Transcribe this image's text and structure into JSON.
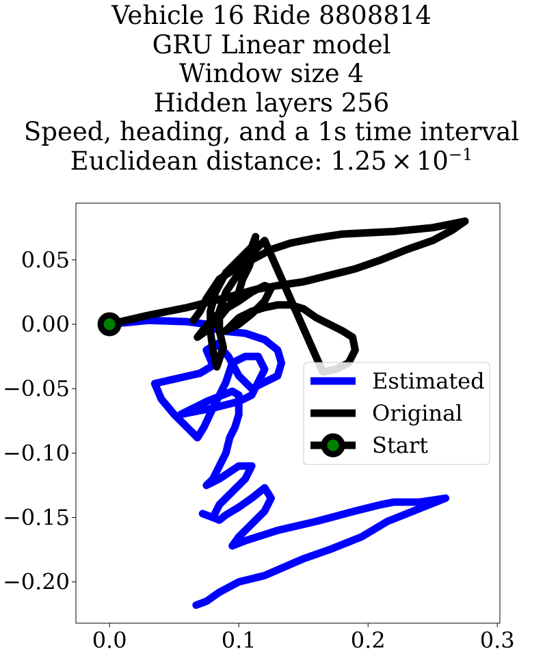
{
  "title_lines": [
    "Vehicle 16 Ride 8808814",
    "GRU Linear model",
    "Window size 4",
    "Hidden layers 256",
    "Speed, heading, and a 1s time interval"
  ],
  "distance": {
    "prefix": "Euclidean distance: ",
    "mantissa": "1.25",
    "times": "×",
    "base": "10",
    "exponent": "−1"
  },
  "chart_data": {
    "type": "line",
    "title": "Vehicle 16 Ride 8808814 / GRU Linear model / Window size 4 / Hidden layers 256 / Speed, heading, and a 1s time interval / Euclidean distance: 1.25×10^-1",
    "xlabel": "",
    "ylabel": "",
    "xlim": [
      -0.026,
      0.302
    ],
    "ylim": [
      -0.232,
      0.094
    ],
    "xticks": [
      0.0,
      0.1,
      0.2,
      0.3
    ],
    "xtick_labels": [
      "0.0",
      "0.1",
      "0.2",
      "0.3"
    ],
    "yticks": [
      0.05,
      0.0,
      -0.05,
      -0.1,
      -0.15,
      -0.2
    ],
    "ytick_labels": [
      "0.05",
      "0.00",
      "−0.05",
      "−0.10",
      "−0.15",
      "−0.20"
    ],
    "grid": false,
    "legend_position": "center-right",
    "series": [
      {
        "name": "Estimated",
        "color": "#0000ff",
        "points": [
          [
            0.0,
            0.0
          ],
          [
            0.03,
            0.003
          ],
          [
            0.06,
            0.002
          ],
          [
            0.075,
            0.0
          ],
          [
            0.085,
            -0.005
          ],
          [
            0.105,
            -0.007
          ],
          [
            0.12,
            -0.012
          ],
          [
            0.13,
            -0.02
          ],
          [
            0.133,
            -0.03
          ],
          [
            0.13,
            -0.04
          ],
          [
            0.11,
            -0.05
          ],
          [
            0.1,
            -0.04
          ],
          [
            0.092,
            -0.025
          ],
          [
            0.083,
            -0.015
          ],
          [
            0.075,
            -0.02
          ],
          [
            0.08,
            -0.032
          ],
          [
            0.07,
            -0.038
          ],
          [
            0.035,
            -0.046
          ],
          [
            0.04,
            -0.058
          ],
          [
            0.05,
            -0.07
          ],
          [
            0.06,
            -0.08
          ],
          [
            0.068,
            -0.088
          ],
          [
            0.073,
            -0.08
          ],
          [
            0.08,
            -0.065
          ],
          [
            0.09,
            -0.045
          ],
          [
            0.095,
            -0.03
          ],
          [
            0.105,
            -0.025
          ],
          [
            0.115,
            -0.025
          ],
          [
            0.12,
            -0.035
          ],
          [
            0.115,
            -0.045
          ],
          [
            0.11,
            -0.055
          ],
          [
            0.1,
            -0.06
          ],
          [
            0.08,
            -0.065
          ],
          [
            0.055,
            -0.07
          ],
          [
            0.075,
            -0.06
          ],
          [
            0.095,
            -0.052
          ],
          [
            0.1,
            -0.055
          ],
          [
            0.1,
            -0.07
          ],
          [
            0.097,
            -0.08
          ],
          [
            0.093,
            -0.088
          ],
          [
            0.09,
            -0.1
          ],
          [
            0.085,
            -0.11
          ],
          [
            0.08,
            -0.12
          ],
          [
            0.075,
            -0.125
          ],
          [
            0.085,
            -0.12
          ],
          [
            0.1,
            -0.11
          ],
          [
            0.11,
            -0.11
          ],
          [
            0.105,
            -0.12
          ],
          [
            0.095,
            -0.13
          ],
          [
            0.085,
            -0.14
          ],
          [
            0.08,
            -0.15
          ],
          [
            0.072,
            -0.147
          ],
          [
            0.08,
            -0.15
          ],
          [
            0.085,
            -0.152
          ],
          [
            0.09,
            -0.148
          ],
          [
            0.1,
            -0.142
          ],
          [
            0.11,
            -0.135
          ],
          [
            0.12,
            -0.127
          ],
          [
            0.125,
            -0.135
          ],
          [
            0.12,
            -0.145
          ],
          [
            0.11,
            -0.155
          ],
          [
            0.1,
            -0.165
          ],
          [
            0.095,
            -0.172
          ],
          [
            0.105,
            -0.168
          ],
          [
            0.13,
            -0.16
          ],
          [
            0.16,
            -0.153
          ],
          [
            0.19,
            -0.145
          ],
          [
            0.21,
            -0.14
          ],
          [
            0.22,
            -0.138
          ],
          [
            0.24,
            -0.138
          ],
          [
            0.26,
            -0.135
          ],
          [
            0.235,
            -0.145
          ],
          [
            0.215,
            -0.153
          ],
          [
            0.195,
            -0.165
          ],
          [
            0.17,
            -0.175
          ],
          [
            0.15,
            -0.182
          ],
          [
            0.12,
            -0.195
          ],
          [
            0.1,
            -0.2
          ],
          [
            0.085,
            -0.208
          ],
          [
            0.075,
            -0.215
          ],
          [
            0.067,
            -0.218
          ]
        ]
      },
      {
        "name": "Original",
        "color": "#000000",
        "points": [
          [
            0.0,
            0.0
          ],
          [
            0.03,
            0.007
          ],
          [
            0.06,
            0.013
          ],
          [
            0.08,
            0.018
          ],
          [
            0.095,
            0.022
          ],
          [
            0.113,
            0.027
          ],
          [
            0.13,
            0.03
          ],
          [
            0.15,
            0.033
          ],
          [
            0.17,
            0.038
          ],
          [
            0.19,
            0.043
          ],
          [
            0.21,
            0.05
          ],
          [
            0.23,
            0.058
          ],
          [
            0.25,
            0.065
          ],
          [
            0.265,
            0.073
          ],
          [
            0.275,
            0.08
          ],
          [
            0.25,
            0.075
          ],
          [
            0.22,
            0.072
          ],
          [
            0.18,
            0.07
          ],
          [
            0.16,
            0.067
          ],
          [
            0.14,
            0.063
          ],
          [
            0.125,
            0.058
          ],
          [
            0.11,
            0.05
          ],
          [
            0.1,
            0.04
          ],
          [
            0.09,
            0.025
          ],
          [
            0.085,
            0.01
          ],
          [
            0.085,
            -0.005
          ],
          [
            0.088,
            -0.018
          ],
          [
            0.083,
            -0.033
          ],
          [
            0.08,
            -0.02
          ],
          [
            0.078,
            -0.005
          ],
          [
            0.078,
            0.01
          ],
          [
            0.082,
            0.025
          ],
          [
            0.09,
            0.04
          ],
          [
            0.1,
            0.05
          ],
          [
            0.11,
            0.06
          ],
          [
            0.113,
            0.068
          ],
          [
            0.112,
            0.058
          ],
          [
            0.108,
            0.045
          ],
          [
            0.103,
            0.035
          ],
          [
            0.1,
            0.025
          ],
          [
            0.093,
            0.015
          ],
          [
            0.085,
            0.005
          ],
          [
            0.075,
            -0.005
          ],
          [
            0.068,
            -0.01
          ],
          [
            0.072,
            -0.005
          ],
          [
            0.08,
            0.005
          ],
          [
            0.09,
            0.012
          ],
          [
            0.1,
            0.018
          ],
          [
            0.11,
            0.025
          ],
          [
            0.12,
            0.03
          ],
          [
            0.125,
            0.028
          ],
          [
            0.12,
            0.018
          ],
          [
            0.11,
            0.008
          ],
          [
            0.1,
            0.0
          ],
          [
            0.09,
            -0.005
          ],
          [
            0.095,
            0.0
          ],
          [
            0.1,
            0.005
          ],
          [
            0.11,
            0.01
          ],
          [
            0.12,
            0.013
          ],
          [
            0.13,
            0.015
          ],
          [
            0.14,
            0.015
          ],
          [
            0.15,
            0.012
          ],
          [
            0.16,
            0.005
          ],
          [
            0.17,
            0.0
          ],
          [
            0.18,
            -0.005
          ],
          [
            0.188,
            -0.01
          ],
          [
            0.19,
            -0.02
          ],
          [
            0.185,
            -0.03
          ],
          [
            0.175,
            -0.035
          ],
          [
            0.165,
            -0.037
          ],
          [
            0.12,
            0.065
          ],
          [
            0.11,
            0.055
          ],
          [
            0.1,
            0.045
          ],
          [
            0.085,
            0.035
          ],
          [
            0.075,
            0.02
          ],
          [
            0.07,
            0.01
          ],
          [
            0.065,
            0.003
          ]
        ]
      },
      {
        "name": "Start",
        "color": "#008000",
        "points": [
          [
            0.0,
            0.0
          ]
        ]
      }
    ]
  }
}
